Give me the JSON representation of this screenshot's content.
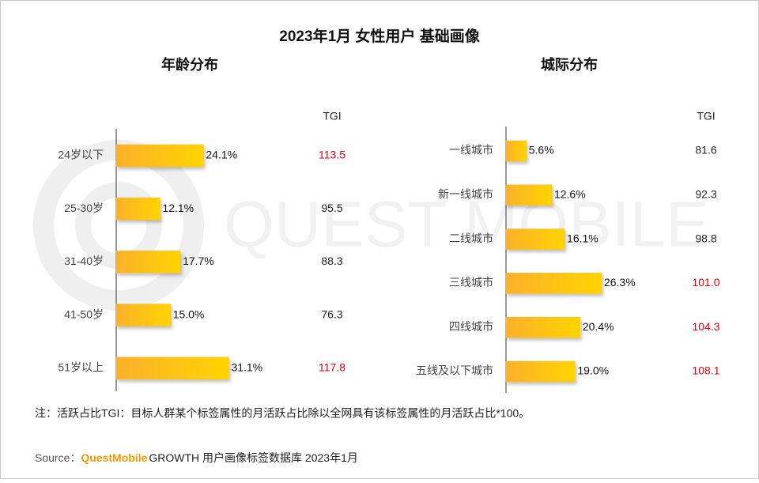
{
  "title": "2023年1月 女性用户 基础画像",
  "watermark": "QUEST MOBILE",
  "note": "注：活跃占比TGI：目标人群某个标签属性的月活跃占比除以全网具有该标签属性的月活跃占比*100。",
  "source": {
    "label": "Source：",
    "brand": "QuestMobile",
    "text": "GROWTH 用户画像标签数据库 2023年1月"
  },
  "chart_data": [
    {
      "type": "bar",
      "title": "年龄分布",
      "categories": [
        "24岁以下",
        "25-30岁",
        "31-40岁",
        "41-50岁",
        "51岁以上"
      ],
      "values": [
        24.1,
        12.1,
        17.7,
        15.0,
        31.1
      ],
      "value_labels": [
        "24.1%",
        "12.1%",
        "17.7%",
        "15.0%",
        "31.1%"
      ],
      "color": "#fbb928",
      "tgi": {
        "name": "TGI",
        "values": [
          113.5,
          95.5,
          88.3,
          76.3,
          117.8
        ],
        "value_labels": [
          "113.5",
          "95.5",
          "88.3",
          "76.3",
          "117.8"
        ],
        "colors": [
          "#e60012",
          "#222222",
          "#222222",
          "#222222",
          "#e60012"
        ]
      }
    },
    {
      "type": "bar",
      "title": "城际分布",
      "categories": [
        "一线城市",
        "新一线城市",
        "二线城市",
        "三线城市",
        "四线城市",
        "五线及以下城市"
      ],
      "values": [
        5.6,
        12.6,
        16.1,
        26.3,
        20.4,
        19.0
      ],
      "value_labels": [
        "5.6%",
        "12.6%",
        "16.1%",
        "26.3%",
        "20.4%",
        "19.0%"
      ],
      "color": "#fbb928",
      "tgi": {
        "name": "TGI",
        "values": [
          81.6,
          92.3,
          98.8,
          101.0,
          104.3,
          108.1
        ],
        "value_labels": [
          "81.6",
          "92.3",
          "98.8",
          "101.0",
          "104.3",
          "108.1"
        ],
        "colors": [
          "#222222",
          "#222222",
          "#222222",
          "#e60012",
          "#e60012",
          "#e60012"
        ]
      }
    }
  ]
}
